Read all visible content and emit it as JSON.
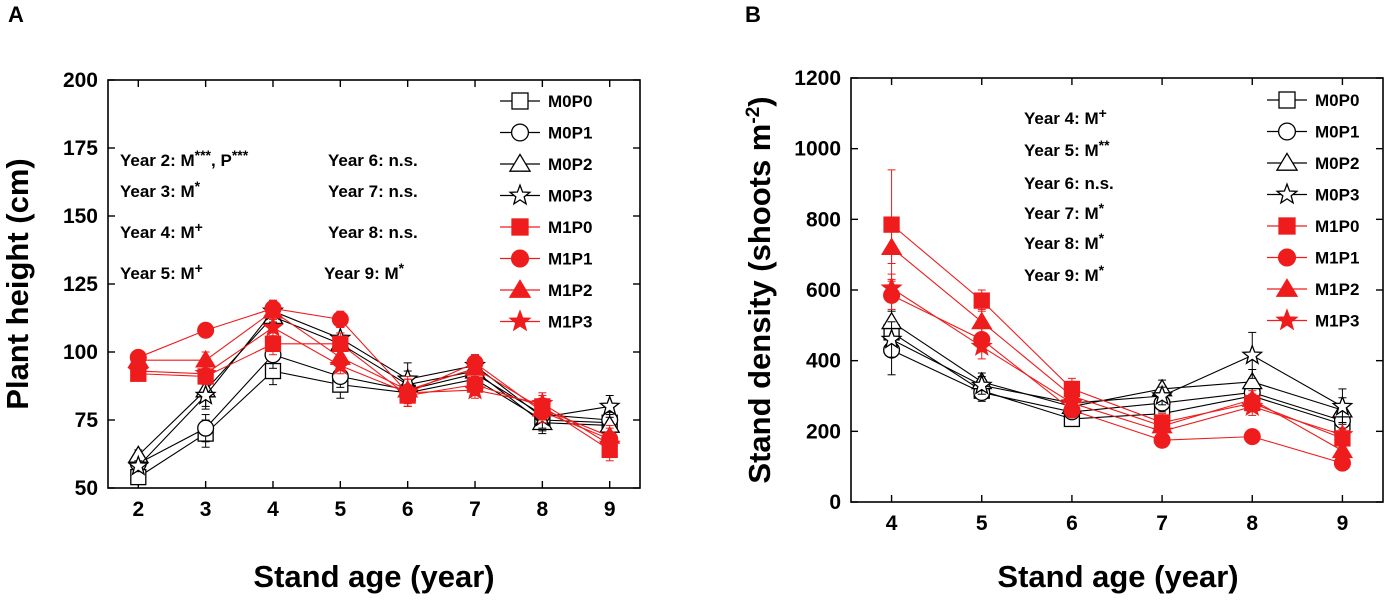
{
  "panels": [
    {
      "letter": "A",
      "chart_data": {
        "type": "line",
        "title": "",
        "xlabel": "Stand age (year)",
        "ylabel": "Plant height (cm)",
        "xlim": [
          1.55,
          9.45
        ],
        "ylim": [
          50,
          200
        ],
        "xticks": [
          2,
          3,
          4,
          5,
          6,
          7,
          8,
          9
        ],
        "yticks": [
          50,
          75,
          100,
          125,
          150,
          175,
          200
        ],
        "x": [
          2,
          3,
          4,
          5,
          6,
          7,
          8,
          9
        ],
        "series": [
          {
            "name": "M0P0",
            "marker": "square",
            "filled": false,
            "color": "#000000",
            "values": [
              54,
              70,
              93,
              88,
              85,
              90,
              75,
              74
            ],
            "errors": [
              2,
              5,
              5,
              5,
              5,
              5,
              4,
              4
            ]
          },
          {
            "name": "M0P1",
            "marker": "circle",
            "filled": false,
            "color": "#000000",
            "values": [
              59,
              72,
              99,
              91,
              86,
              92,
              77,
              75
            ],
            "errors": [
              2,
              5,
              5,
              4,
              4,
              5,
              4,
              4
            ]
          },
          {
            "name": "M0P2",
            "marker": "triangle",
            "filled": false,
            "color": "#000000",
            "values": [
              62,
              86,
              113,
              103,
              88,
              93,
              74,
              73
            ],
            "errors": [
              2,
              6,
              5,
              4,
              5,
              4,
              4,
              4
            ]
          },
          {
            "name": "M0P3",
            "marker": "star",
            "filled": false,
            "color": "#000000",
            "values": [
              58,
              84,
              115,
              105,
              90,
              95,
              76,
              80
            ],
            "errors": [
              2,
              5,
              4,
              4,
              6,
              4,
              4,
              4
            ]
          },
          {
            "name": "M1P0",
            "marker": "square",
            "filled": true,
            "color": "#ee1c1c",
            "values": [
              92,
              91,
              103,
              103,
              84,
              88,
              80,
              64
            ],
            "errors": [
              2,
              3,
              4,
              4,
              4,
              4,
              4,
              4
            ]
          },
          {
            "name": "M1P1",
            "marker": "circle",
            "filled": true,
            "color": "#ee1c1c",
            "values": [
              98,
              108,
              116,
              112,
              85,
              96,
              78,
              68
            ],
            "errors": [
              2,
              2,
              3,
              3,
              5,
              3,
              4,
              4
            ]
          },
          {
            "name": "M1P2",
            "marker": "triangle",
            "filled": true,
            "color": "#ee1c1c",
            "values": [
              97,
              97,
              115,
              98,
              86,
              94,
              79,
              69
            ],
            "errors": [
              2,
              3,
              3,
              3,
              5,
              3,
              4,
              4
            ]
          },
          {
            "name": "M1P3",
            "marker": "star",
            "filled": true,
            "color": "#ee1c1c",
            "values": [
              93,
              92,
              109,
              95,
              85,
              86,
              81,
              66
            ],
            "errors": [
              2,
              3,
              3,
              3,
              5,
              3,
              4,
              4
            ]
          }
        ],
        "annotations": [
          {
            "text": "Year 2: M***, P***"
          },
          {
            "text": "Year 3: M*"
          },
          {
            "text": "Year 4: M+"
          },
          {
            "text": "Year 5: M+"
          },
          {
            "text": "Year 6: n.s."
          },
          {
            "text": "Year 7: n.s."
          },
          {
            "text": "Year 8: n.s."
          },
          {
            "text": "Year 9: M*"
          }
        ],
        "legend": "top-right"
      }
    },
    {
      "letter": "B",
      "chart_data": {
        "type": "line",
        "title": "",
        "xlabel": "Stand age (year)",
        "ylabel": "Stand density (shoots m-2)",
        "xlim": [
          3.55,
          9.45
        ],
        "ylim": [
          0,
          1200
        ],
        "xticks": [
          4,
          5,
          6,
          7,
          8,
          9
        ],
        "yticks": [
          0,
          200,
          400,
          600,
          800,
          1000,
          1200
        ],
        "x": [
          4,
          5,
          6,
          7,
          8,
          9
        ],
        "series": [
          {
            "name": "M0P0",
            "marker": "square",
            "filled": false,
            "color": "#000000",
            "values": [
              480,
              315,
              235,
              250,
              300,
              220
            ],
            "errors": [
              60,
              25,
              20,
              25,
              30,
              40
            ]
          },
          {
            "name": "M0P1",
            "marker": "circle",
            "filled": false,
            "color": "#000000",
            "values": [
              430,
              310,
              255,
              280,
              310,
              230
            ],
            "errors": [
              70,
              25,
              20,
              25,
              35,
              40
            ]
          },
          {
            "name": "M0P2",
            "marker": "triangle",
            "filled": false,
            "color": "#000000",
            "values": [
              510,
              340,
              270,
              320,
              340,
              260
            ],
            "errors": [
              60,
              25,
              20,
              25,
              35,
              35
            ]
          },
          {
            "name": "M0P3",
            "marker": "star",
            "filled": false,
            "color": "#000000",
            "values": [
              460,
              330,
              280,
              300,
              415,
              270
            ],
            "errors": [
              50,
              25,
              20,
              25,
              65,
              50
            ]
          },
          {
            "name": "M1P0",
            "marker": "square",
            "filled": true,
            "color": "#ee1c1c",
            "values": [
              785,
              570,
              320,
              225,
              280,
              180
            ],
            "errors": [
              155,
              30,
              30,
              25,
              25,
              25
            ]
          },
          {
            "name": "M1P1",
            "marker": "circle",
            "filled": true,
            "color": "#ee1c1c",
            "values": [
              585,
              460,
              260,
              175,
              185,
              110
            ],
            "errors": [
              40,
              35,
              20,
              15,
              15,
              15
            ]
          },
          {
            "name": "M1P2",
            "marker": "triangle",
            "filled": true,
            "color": "#ee1c1c",
            "values": [
              720,
              510,
              300,
              215,
              290,
              145
            ],
            "errors": [
              45,
              35,
              25,
              20,
              25,
              20
            ]
          },
          {
            "name": "M1P3",
            "marker": "star",
            "filled": true,
            "color": "#ee1c1c",
            "values": [
              605,
              440,
              280,
              200,
              270,
              190
            ],
            "errors": [
              40,
              35,
              20,
              20,
              25,
              20
            ]
          }
        ],
        "annotations": [
          {
            "text": "Year 4: M+"
          },
          {
            "text": "Year 5: M**"
          },
          {
            "text": "Year 6: n.s."
          },
          {
            "text": "Year 7: M*"
          },
          {
            "text": "Year 8: M*"
          },
          {
            "text": "Year 9: M*"
          }
        ],
        "legend": "top-right"
      }
    }
  ]
}
